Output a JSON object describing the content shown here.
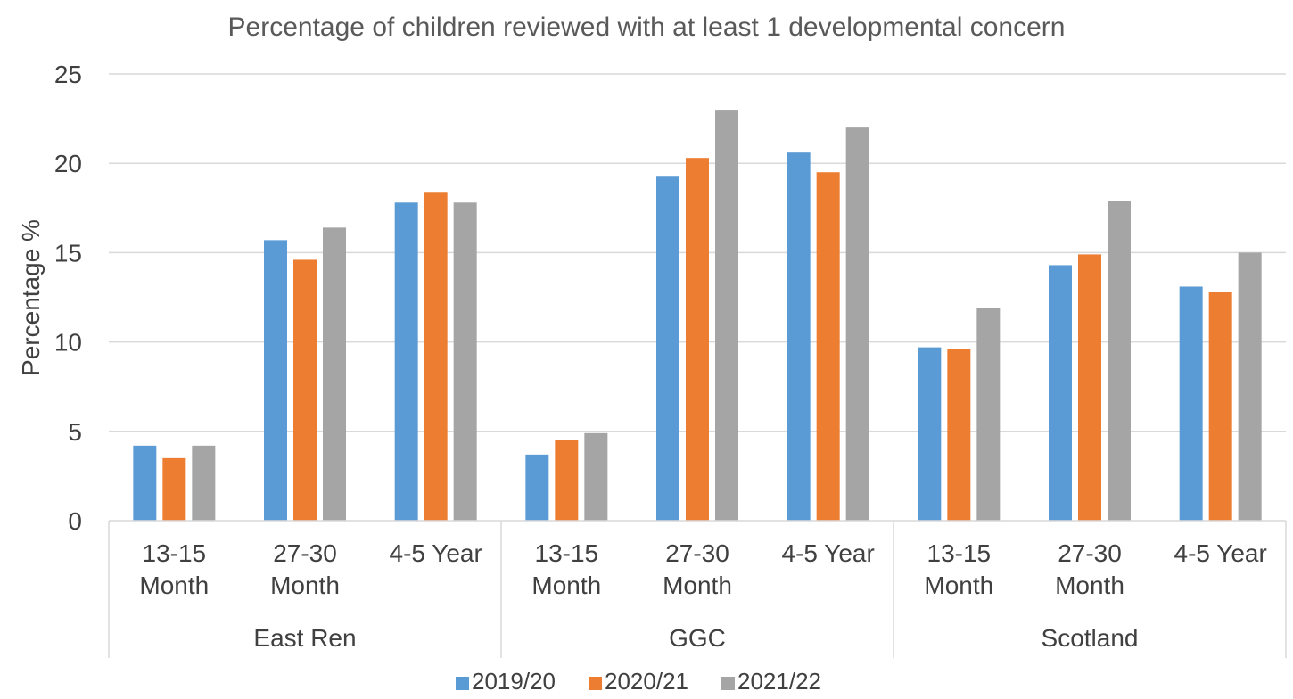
{
  "chart_data": {
    "type": "bar",
    "title": "Percentage of children reviewed with at least 1 developmental concern",
    "ylabel": "Percentage %",
    "ylim": [
      0,
      25
    ],
    "yticks": [
      "0",
      "5",
      "10",
      "15",
      "20",
      "25"
    ],
    "grid": true,
    "legend_position": "bottom",
    "groups": [
      {
        "label": "East Ren",
        "categories": [
          [
            "13-15",
            "Month"
          ],
          [
            "27-30",
            "Month"
          ],
          [
            "4-5 Year"
          ]
        ]
      },
      {
        "label": "GGC",
        "categories": [
          [
            "13-15",
            "Month"
          ],
          [
            "27-30",
            "Month"
          ],
          [
            "4-5 Year"
          ]
        ]
      },
      {
        "label": "Scotland",
        "categories": [
          [
            "13-15",
            "Month"
          ],
          [
            "27-30",
            "Month"
          ],
          [
            "4-5 Year"
          ]
        ]
      }
    ],
    "series": [
      {
        "name": "2019/20",
        "color": "#5b9bd5",
        "values": [
          4.2,
          15.7,
          17.8,
          3.7,
          19.3,
          20.6,
          9.7,
          14.3,
          13.1
        ]
      },
      {
        "name": "2020/21",
        "color": "#ed7d31",
        "values": [
          3.5,
          14.6,
          18.4,
          4.5,
          20.3,
          19.5,
          9.6,
          14.9,
          12.8
        ]
      },
      {
        "name": "2021/22",
        "color": "#a5a5a5",
        "values": [
          4.2,
          16.4,
          17.8,
          4.9,
          23.0,
          22.0,
          11.9,
          17.9,
          15.0
        ]
      }
    ]
  }
}
